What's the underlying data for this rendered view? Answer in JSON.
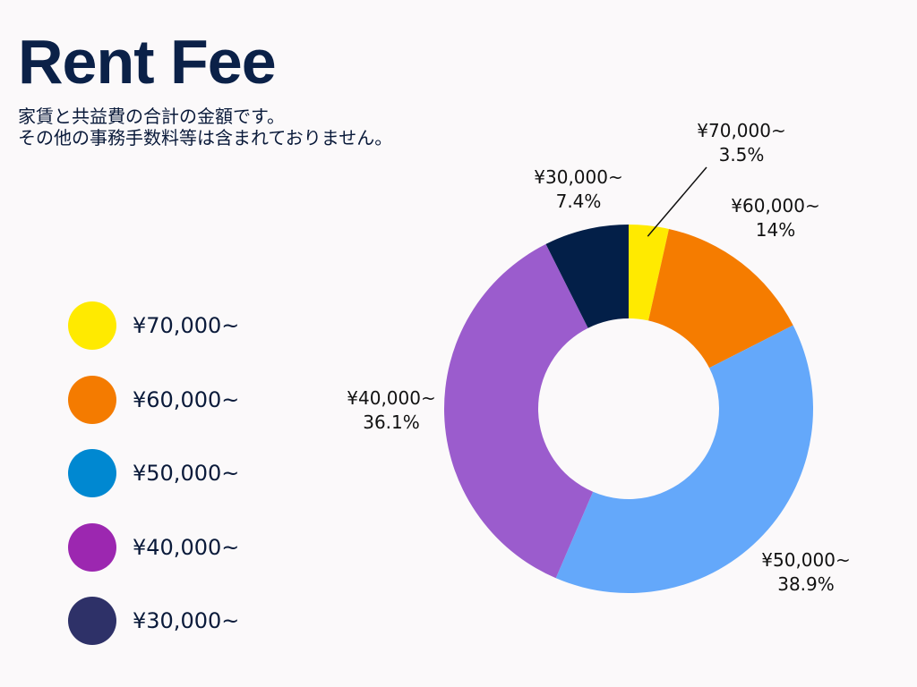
{
  "header": {
    "title": "Rent Fee",
    "subtitle_line1": "家賃と共益費の合計の金額です。",
    "subtitle_line2": "その他の事務手数料等は含まれておりません。"
  },
  "legend": {
    "items": [
      {
        "label": "¥70,000~",
        "color": "#ffea00"
      },
      {
        "label": "¥60,000~",
        "color": "#f47b00"
      },
      {
        "label": "¥50,000~",
        "color": "#0088d1"
      },
      {
        "label": "¥40,000~",
        "color": "#9c27b0"
      },
      {
        "label": "¥30,000~",
        "color": "#2e3168"
      }
    ]
  },
  "chart_data": {
    "type": "pie",
    "style": "donut",
    "categories": [
      "¥70,000~",
      "¥60,000~",
      "¥50,000~",
      "¥40,000~",
      "¥30,000~"
    ],
    "values": [
      3.5,
      14,
      38.9,
      36.1,
      7.4
    ],
    "value_labels": [
      "3.5%",
      "14%",
      "38.9%",
      "36.1%",
      "7.4%"
    ],
    "colors": [
      "#ffea00",
      "#f57c00",
      "#64a8fa",
      "#9b5ccd",
      "#031f48"
    ],
    "start": "top",
    "direction": "clockwise"
  }
}
